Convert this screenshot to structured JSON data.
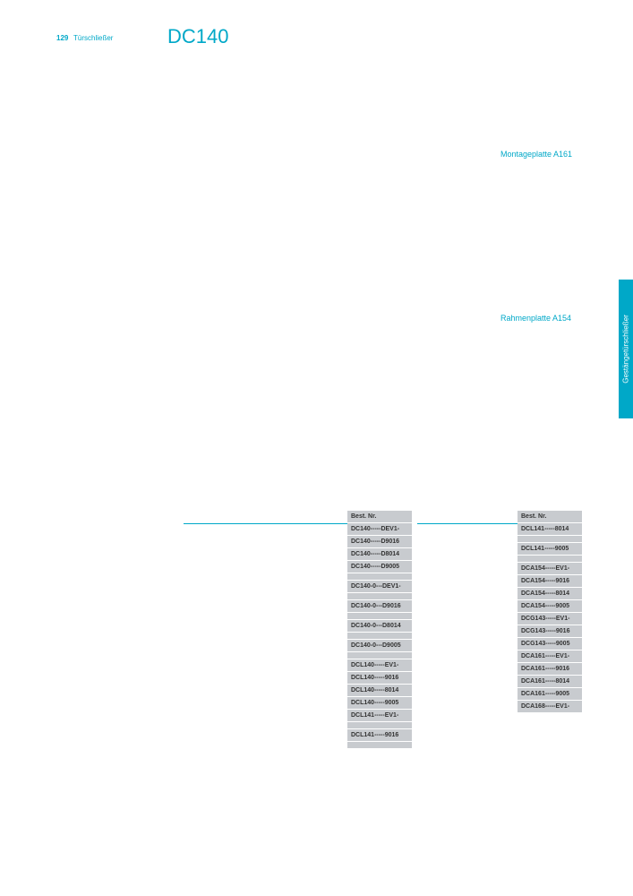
{
  "header": {
    "page_number": "129",
    "category": "Türschließer",
    "product": "DC140"
  },
  "accessories": {
    "mounting_plate": "Montageplatte A161",
    "frame_plate": "Rahmenplatte A154"
  },
  "side_tab": "Gestängetürschließer",
  "colors": {
    "brand": "#00a8c8",
    "cell_bg": "#c8cbcf",
    "text": "#333333"
  },
  "table_left": {
    "header": "Best. Nr.",
    "rows": [
      "DC140-----DEV1-",
      "DC140-----D9016",
      "DC140-----D8014",
      "DC140-----D9005"
    ],
    "rows_group2": [
      "DC140-0---DEV1-"
    ],
    "rows_group3": [
      "DC140-0---D9016"
    ],
    "rows_group4": [
      "DC140-0---D8014"
    ],
    "rows_group5": [
      "DC140-0---D9005"
    ],
    "rows_group6": [
      "DCL140-----EV1-",
      "DCL140-----9016",
      "DCL140-----8014",
      "DCL140-----9005",
      "DCL141-----EV1-"
    ],
    "rows_group7": [
      "DCL141-----9016"
    ]
  },
  "table_right": {
    "header": "Best. Nr.",
    "rows": [
      "DCL141-----8014"
    ],
    "rows_group2": [
      "DCL141-----9005"
    ],
    "rows_group3": [
      "DCA154-----EV1-",
      "DCA154-----9016",
      "DCA154-----8014",
      "DCA154-----9005",
      "DCG143-----EV1-",
      "DCG143-----9016",
      "DCG143-----9005",
      "DCA161-----EV1-",
      "DCA161-----9016",
      "DCA161-----8014",
      "DCA161-----9005",
      "DCA168-----EV1-"
    ]
  }
}
